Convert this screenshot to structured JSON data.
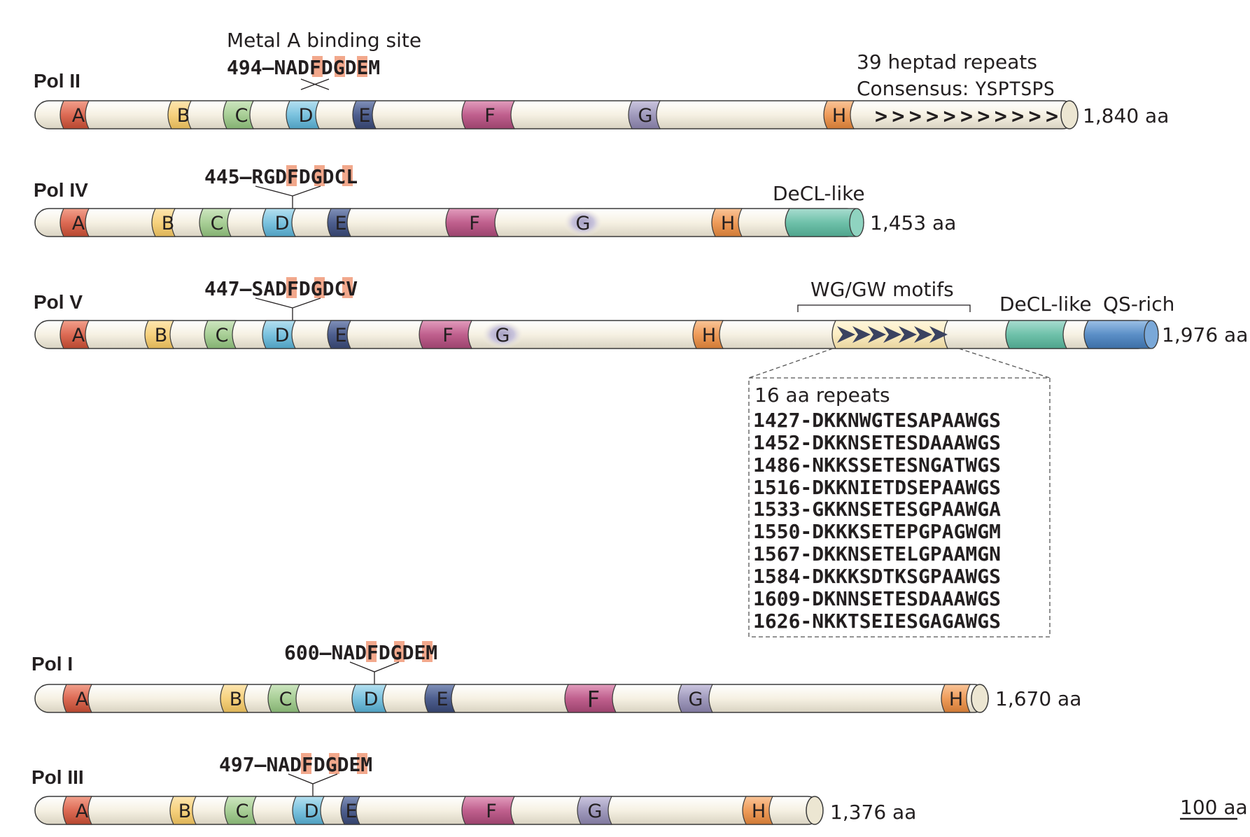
{
  "rows": [
    {
      "id": "pol2",
      "name": "Pol II",
      "length": "1,840 aa",
      "motif_num": "494",
      "motif_seq": "NADFDGDEM",
      "motif_highlights": [
        2,
        4,
        6
      ],
      "domains": {
        "A": "A",
        "B": "B",
        "C": "C",
        "D": "D",
        "E": "E",
        "F": "F",
        "G": "G",
        "H": "H"
      },
      "heading": "Metal A binding site",
      "repeats_line1": "39 heptad repeats",
      "repeats_prefix": "Consensus: ",
      "repeats_seq": "YSPTSPS",
      "repeats_arrows": ">>>>>>>>>>>"
    },
    {
      "id": "pol4",
      "name": "Pol IV",
      "length": "1,453 aa",
      "motif_num": "445",
      "motif_seq": "RGDFDGDCL",
      "motif_highlights": [
        2,
        4,
        6
      ],
      "domains": {
        "A": "A",
        "B": "B",
        "C": "C",
        "D": "D",
        "E": "E",
        "F": "F",
        "G": "G",
        "H": "H"
      },
      "decl": "DeCL-like"
    },
    {
      "id": "pol5",
      "name": "Pol V",
      "length": "1,976 aa",
      "motif_num": "447",
      "motif_seq": "SADFDGDCV",
      "motif_highlights": [
        2,
        4,
        6
      ],
      "domains": {
        "A": "A",
        "B": "B",
        "C": "C",
        "D": "D",
        "E": "E",
        "F": "F",
        "G": "G",
        "H": "H"
      },
      "decl": "DeCL-like",
      "qs": "QS-rich",
      "wg": "WG/GW motifs"
    },
    {
      "id": "pol1",
      "name": "Pol I",
      "length": "1,670 aa",
      "motif_num": "600",
      "motif_seq": "NADFDGDEM",
      "motif_highlights": [
        2,
        4,
        6
      ],
      "domains": {
        "A": "A",
        "B": "B",
        "C": "C",
        "D": "D",
        "E": "E",
        "F": "F",
        "G": "G",
        "H": "H"
      }
    },
    {
      "id": "pol3",
      "name": "Pol III",
      "length": "1,376 aa",
      "motif_num": "497",
      "motif_seq": "NADFDGDEM",
      "motif_highlights": [
        2,
        4,
        6
      ],
      "domains": {
        "A": "A",
        "B": "B",
        "C": "C",
        "D": "D",
        "E": "E",
        "F": "F",
        "G": "G",
        "H": "H"
      }
    }
  ],
  "repeats_box": {
    "title": "16 aa repeats",
    "lines": [
      "1427-DKKNWGTESAPAAWGS",
      "1452-DKKNSETESDAAAWGS",
      "1486-NKKSSETESNGATWGS",
      "1516-DKKNIETDSEPAAWGS",
      "1533-GKKNSETESGPAAWGA",
      "1550-DKKKSETEPGPAGWGM",
      "1567-DKKNSETELGPAAMGN",
      "1584-DKKKSDTKSGPAAWGS",
      "1609-DKNNSETESDAAAWGS",
      "1626-NKKTSEIESGAGAWGS"
    ]
  },
  "scale_bar": "100 aa",
  "colors": {
    "A": "#dd6b55",
    "B": "#f7d27e",
    "C": "#a9cf97",
    "D": "#7cc3df",
    "E": "#4e5f8f",
    "F": "#c0608e",
    "G": "#a19bbd",
    "H": "#ef9c5a",
    "decl": "#6fc1aa",
    "qs": "#5b8fc7",
    "body": "#f7f3e6",
    "motif_highlight": "#f2a88c",
    "wg_fill": "#fcedc2"
  }
}
